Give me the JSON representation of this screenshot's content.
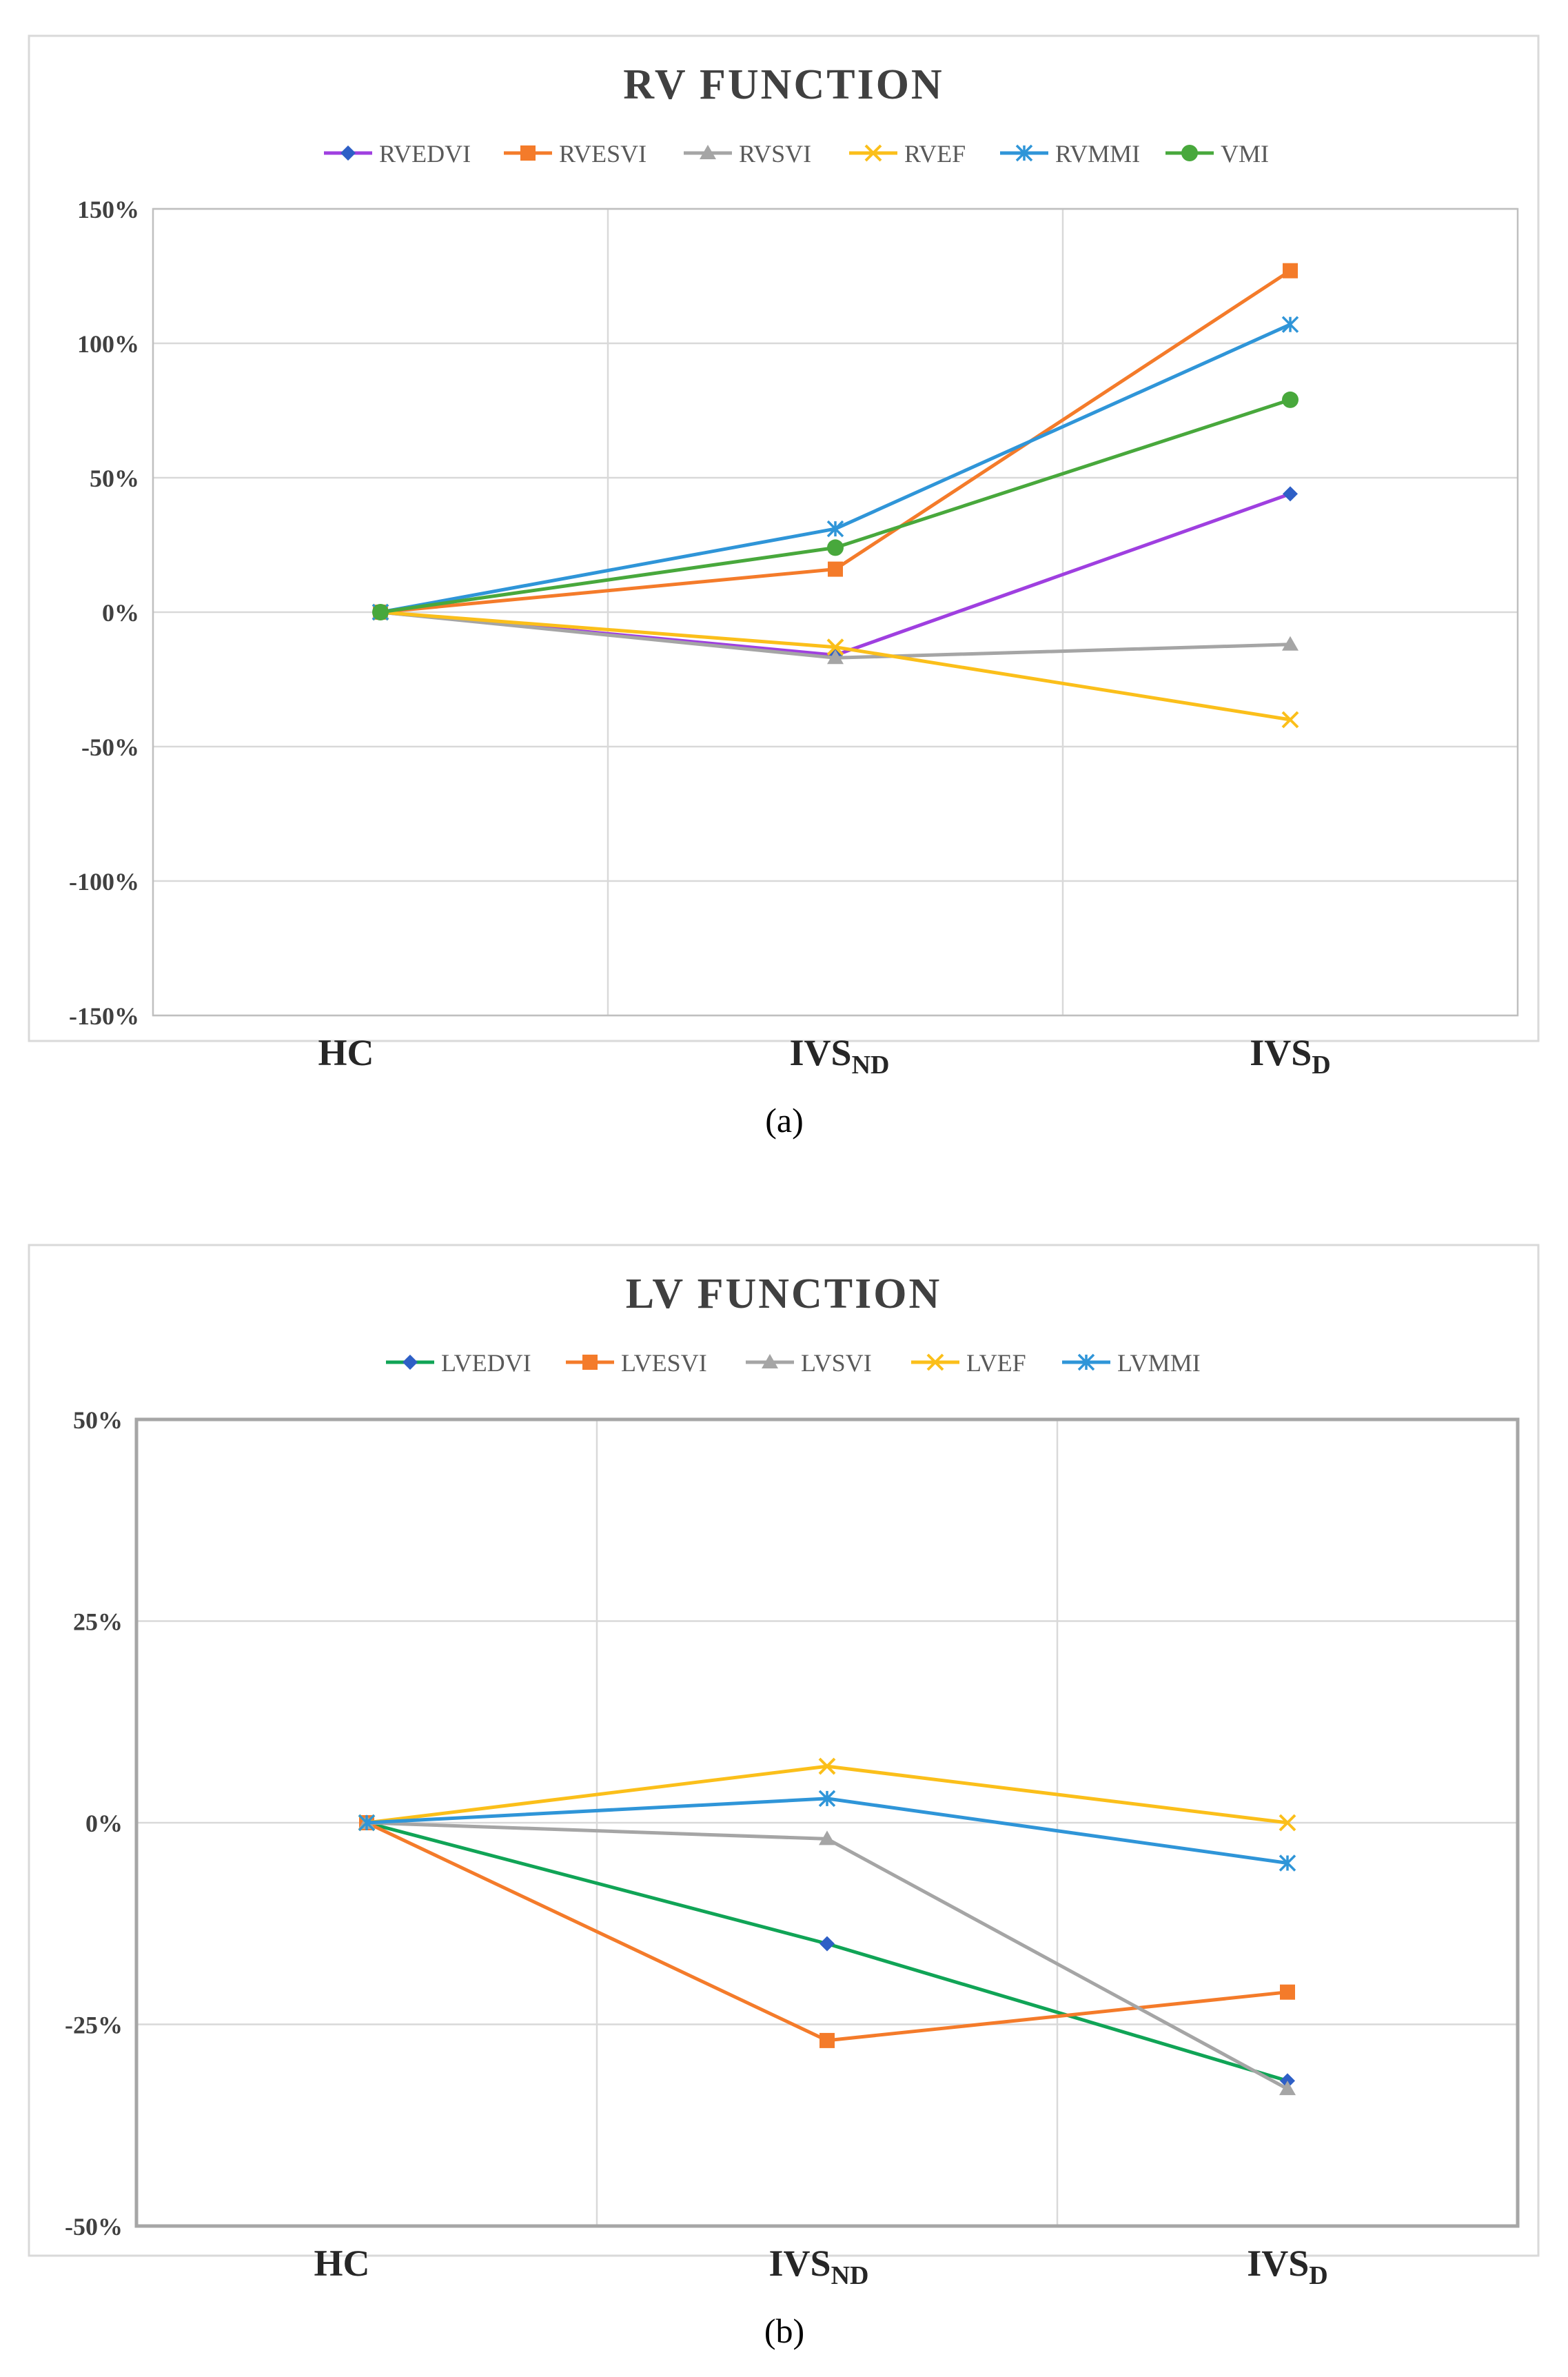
{
  "chart_data": [
    {
      "type": "line",
      "panel_label": "(a)",
      "title": "RV FUNCTION",
      "categories": [
        {
          "main": "HC",
          "sub": ""
        },
        {
          "main": "IVS",
          "sub": "ND"
        },
        {
          "main": "IVS",
          "sub": "D"
        }
      ],
      "ylim": [
        -150,
        150
      ],
      "yticks": [
        150,
        100,
        50,
        0,
        -50,
        -100,
        -150
      ],
      "ytick_labels": [
        "150%",
        "100%",
        "50%",
        "0%",
        "-50%",
        "-100%",
        "-150%"
      ],
      "grid": true,
      "legend_position": "top",
      "series": [
        {
          "name": "RVEDVI",
          "color": "#9f3fe0",
          "marker": "diamond",
          "marker_color": "#2e5fc6",
          "values": [
            0,
            -16,
            44
          ]
        },
        {
          "name": "RVESVI",
          "color": "#f47b2a",
          "marker": "square",
          "marker_color": "#f47b2a",
          "values": [
            0,
            16,
            127
          ]
        },
        {
          "name": "RVSVI",
          "color": "#a5a5a5",
          "marker": "triangle",
          "marker_color": "#a5a5a5",
          "values": [
            0,
            -17,
            -12
          ]
        },
        {
          "name": "RVEF",
          "color": "#fbbf1a",
          "marker": "x",
          "marker_color": "#fbbf1a",
          "values": [
            0,
            -13,
            -40
          ]
        },
        {
          "name": "RVMMI",
          "color": "#2f95d8",
          "marker": "star",
          "marker_color": "#2f95d8",
          "values": [
            0,
            31,
            107
          ]
        },
        {
          "name": "VMI",
          "color": "#48a83c",
          "marker": "circle",
          "marker_color": "#48a83c",
          "values": [
            0,
            24,
            79
          ]
        }
      ]
    },
    {
      "type": "line",
      "panel_label": "(b)",
      "title": "LV FUNCTION",
      "categories": [
        {
          "main": "HC",
          "sub": ""
        },
        {
          "main": "IVS",
          "sub": "ND"
        },
        {
          "main": "IVS",
          "sub": "D"
        }
      ],
      "ylim": [
        -50,
        50
      ],
      "yticks": [
        50,
        25,
        0,
        -25,
        -50
      ],
      "ytick_labels": [
        "50%",
        "25%",
        "0%",
        "-25%",
        "-50%"
      ],
      "grid": true,
      "legend_position": "top",
      "series": [
        {
          "name": "LVEDVI",
          "color": "#10a456",
          "marker": "diamond",
          "marker_color": "#2e5fc6",
          "values": [
            0,
            -15,
            -32
          ]
        },
        {
          "name": "LVESVI",
          "color": "#f47b2a",
          "marker": "square",
          "marker_color": "#f47b2a",
          "values": [
            0,
            -27,
            -21
          ]
        },
        {
          "name": "LVSVI",
          "color": "#a5a5a5",
          "marker": "triangle",
          "marker_color": "#a5a5a5",
          "values": [
            0,
            -2,
            -33
          ]
        },
        {
          "name": "LVEF",
          "color": "#fbbf1a",
          "marker": "x",
          "marker_color": "#fbbf1a",
          "values": [
            0,
            7,
            0
          ]
        },
        {
          "name": "LVMMI",
          "color": "#2f95d8",
          "marker": "star",
          "marker_color": "#2f95d8",
          "values": [
            0,
            3,
            -5
          ]
        }
      ]
    }
  ]
}
